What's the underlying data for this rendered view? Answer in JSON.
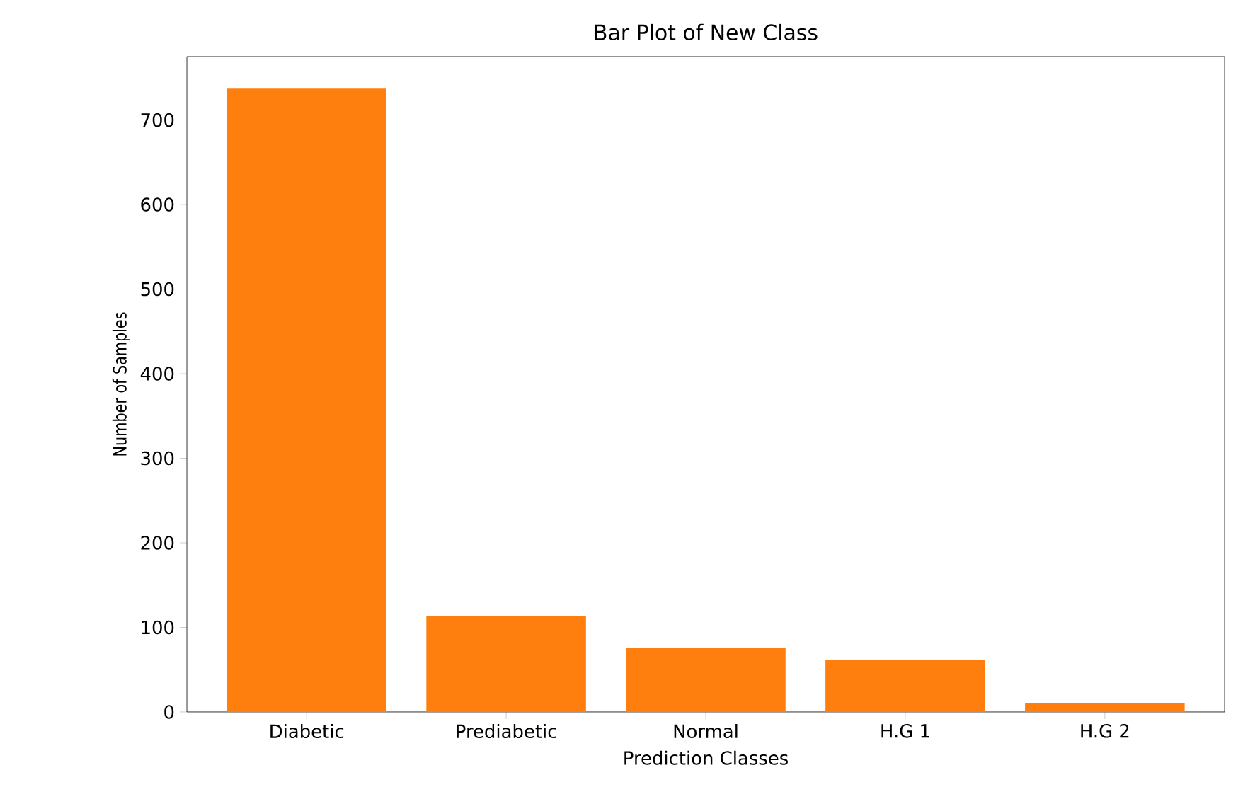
{
  "chart_data": {
    "type": "bar",
    "title": "Bar Plot of New Class",
    "xlabel": "Prediction Classes",
    "ylabel": "Number of Samples",
    "categories": [
      "Diabetic",
      "Prediabetic",
      "Normal",
      "H.G 1",
      "H.G 2"
    ],
    "values": [
      737,
      113,
      76,
      61,
      10
    ],
    "color": "#ff7f0e",
    "ylim": [
      0,
      775
    ],
    "yticks": [
      0,
      100,
      200,
      300,
      400,
      500,
      600,
      700
    ],
    "grid": false
  }
}
